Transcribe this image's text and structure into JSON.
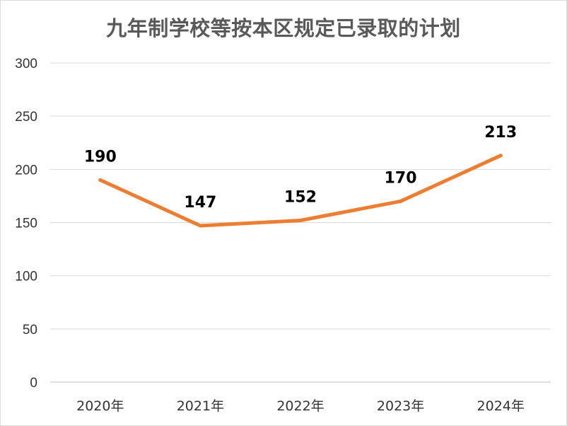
{
  "chart_data": {
    "type": "line",
    "title": "九年制学校等按本区规定已录取的计划",
    "xlabel": "",
    "ylabel": "",
    "categories": [
      "2020年",
      "2021年",
      "2022年",
      "2023年",
      "2024年"
    ],
    "series": [
      {
        "values": [
          190,
          147,
          152,
          170,
          213
        ],
        "color": "#ED7D31"
      }
    ],
    "ylim": [
      0,
      300
    ],
    "yticks": [
      0,
      50,
      100,
      150,
      200,
      250,
      300
    ],
    "grid": true,
    "legend": "none",
    "data_labels": true
  },
  "colors": {
    "line": "#ED7D31",
    "grid": "#d9d9d9",
    "title": "#595959"
  }
}
